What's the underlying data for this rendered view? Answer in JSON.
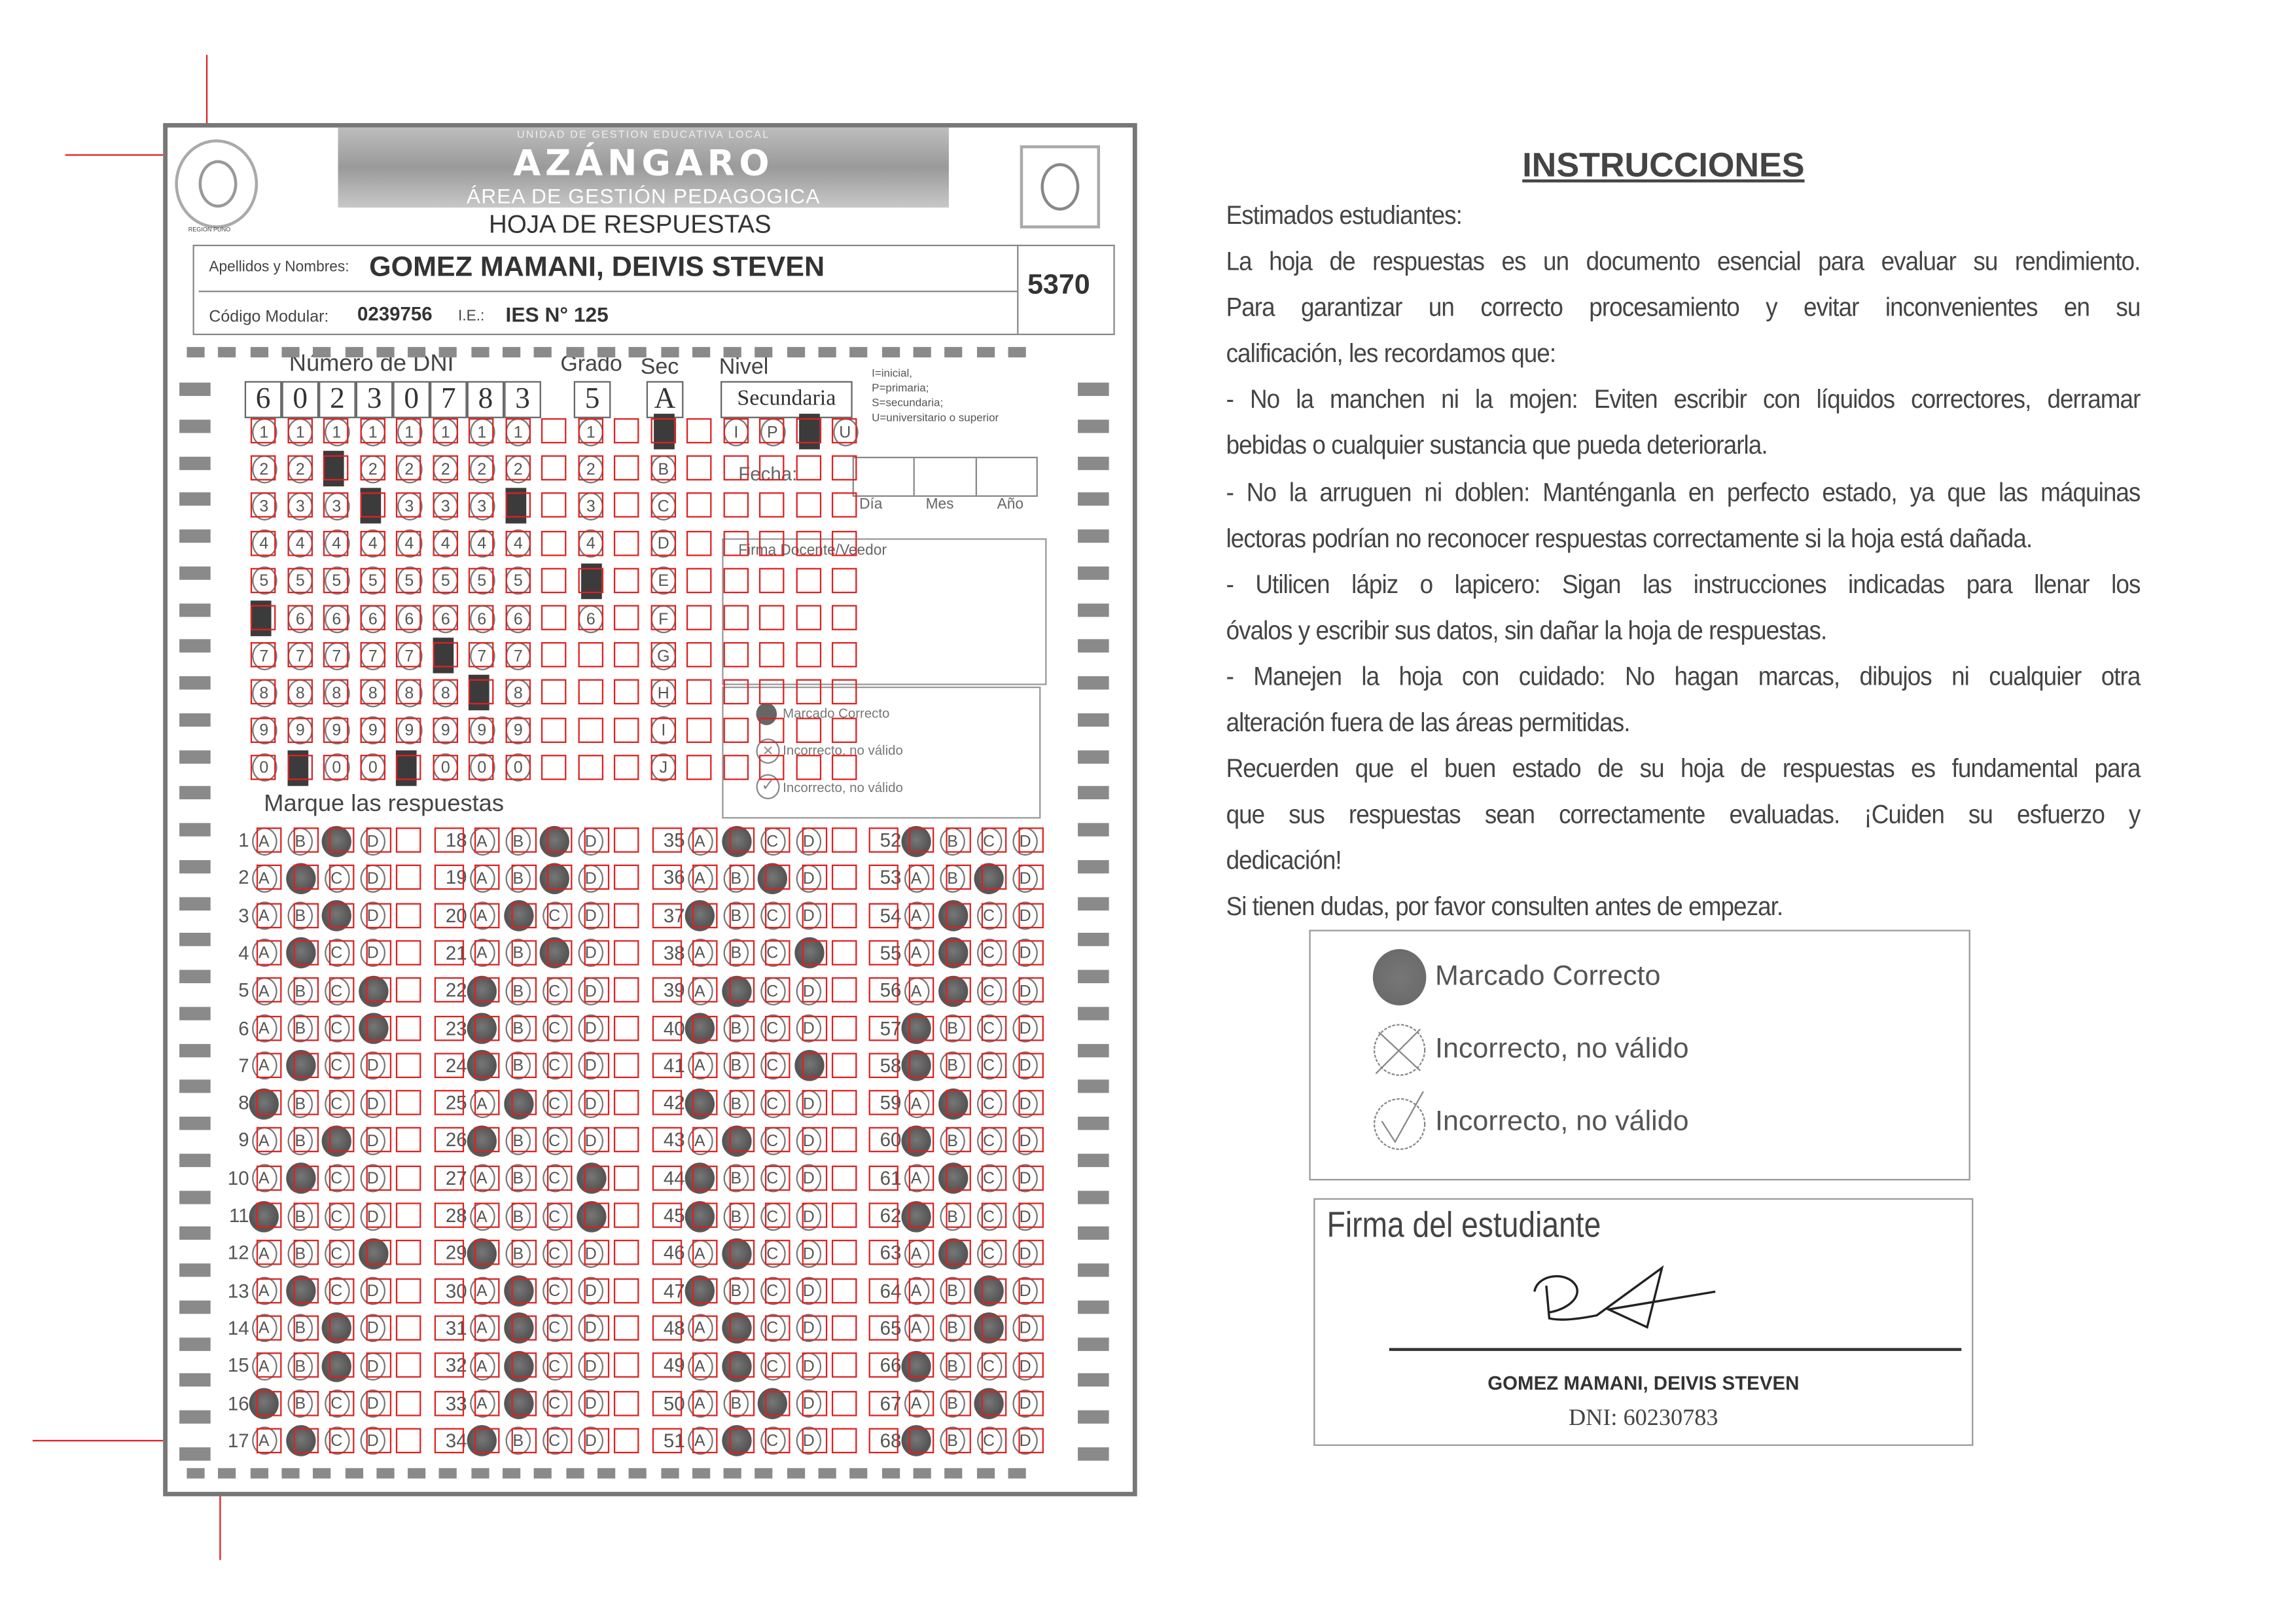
{
  "sheet": {
    "org_small": "UNIDAD DE GESTION EDUCATIVA LOCAL",
    "org_name": "AZÁNGARO",
    "org_area": "ÁREA DE GESTIÓN PEDAGOGICA",
    "region_label": "REGION PUNO",
    "title": "HOJA DE RESPUESTAS",
    "name_label": "Apellidos y Nombres:",
    "name_value": "GOMEZ MAMANI, DEIVIS STEVEN",
    "code_label": "Código Modular:",
    "code_value": "0239756",
    "ie_label": "I.E.:",
    "ie_value": "IES N° 125",
    "sheet_number": "5370",
    "dni_label": "Número de DNI",
    "dni_digits": [
      "6",
      "0",
      "2",
      "3",
      "0",
      "7",
      "8",
      "3"
    ],
    "grado_label": "Grado",
    "grado_value": "5",
    "sec_label": "Sec",
    "sec_value": "A",
    "nivel_label": "Nivel",
    "nivel_value": "Secundaria",
    "nivel_options": [
      "I",
      "P",
      "S",
      "U"
    ],
    "nivel_selected": "S",
    "nivel_legend": [
      "I=inicial,",
      "P=primaria;",
      "S=secundaria;",
      "U=universitario o superior"
    ],
    "digit_rows": [
      "1",
      "2",
      "3",
      "4",
      "5",
      "6",
      "7",
      "8",
      "9",
      "0"
    ],
    "sec_rows": [
      "A",
      "B",
      "C",
      "D",
      "E",
      "F",
      "G",
      "H",
      "I",
      "J"
    ],
    "fecha_label": "Fecha:",
    "fecha_parts": [
      "Día",
      "Mes",
      "Año"
    ],
    "firma_docente_label": "Firma Docente/Veedor",
    "mini_legend": [
      "Marcado Correcto",
      "Incorrecto, no válido",
      "Incorrecto, no válido"
    ],
    "answers_label": "Marque las respuestas",
    "options": [
      "A",
      "B",
      "C",
      "D"
    ],
    "answers": [
      "C",
      "B",
      "C",
      "B",
      "D",
      "D",
      "B",
      "A",
      "C",
      "B",
      "A",
      "D",
      "B",
      "C",
      "C",
      "A",
      "B",
      "C",
      "C",
      "B",
      "C",
      "A",
      "A",
      "A",
      "B",
      "A",
      "D",
      "D",
      "A",
      "B",
      "B",
      "B",
      "B",
      "A",
      "B",
      "C",
      "A",
      "D",
      "B",
      "A",
      "D",
      "A",
      "B",
      "A",
      "A",
      "B",
      "A",
      "B",
      "B",
      "C",
      "B",
      "A",
      "C",
      "B",
      "B",
      "B",
      "A",
      "A",
      "B",
      "A",
      "B",
      "A",
      "B",
      "C",
      "C",
      "A",
      "C",
      "A"
    ]
  },
  "instructions": {
    "title": "INSTRUCCIONES",
    "paragraphs": [
      [
        "Estimados estudiantes:"
      ],
      [
        "La hoja de respuestas es un documento esencial para evaluar su rendimiento.",
        "Para garantizar un correcto procesamiento y evitar inconvenientes en su",
        "calificación, les recordamos que:"
      ],
      [
        "- No la manchen ni la mojen: Eviten escribir con líquidos correctores, derramar",
        "bebidas o cualquier sustancia que pueda deteriorarla."
      ],
      [
        "- No la arruguen ni doblen: Manténganla en perfecto estado, ya que las máquinas",
        "lectoras podrían no reconocer respuestas correctamente si la hoja está dañada."
      ],
      [
        "- Utilicen lápiz o lapicero: Sigan las instrucciones indicadas para llenar los",
        "óvalos y escribir sus datos, sin dañar la hoja de respuestas."
      ],
      [
        "- Manejen la hoja con cuidado: No hagan marcas, dibujos ni cualquier otra",
        "alteración fuera de las áreas permitidas."
      ],
      [
        "Recuerden que el buen estado de su hoja de respuestas es fundamental para",
        "que sus respuestas sean correctamente evaluadas. ¡Cuiden su esfuerzo y",
        "dedicación!"
      ],
      [
        "Si tienen dudas, por favor consulten antes de empezar."
      ]
    ]
  },
  "legend": {
    "filled": "Marcado Correcto",
    "crossed": "Incorrecto, no válido",
    "checked": "Incorrecto, no válido"
  },
  "signature": {
    "label": "Firma  del estudiante",
    "name": "GOMEZ MAMANI, DEIVIS STEVEN",
    "dni": "DNI: 60230783"
  },
  "colors": {
    "scan_overlay": "#e02020",
    "mark": "#555555"
  }
}
